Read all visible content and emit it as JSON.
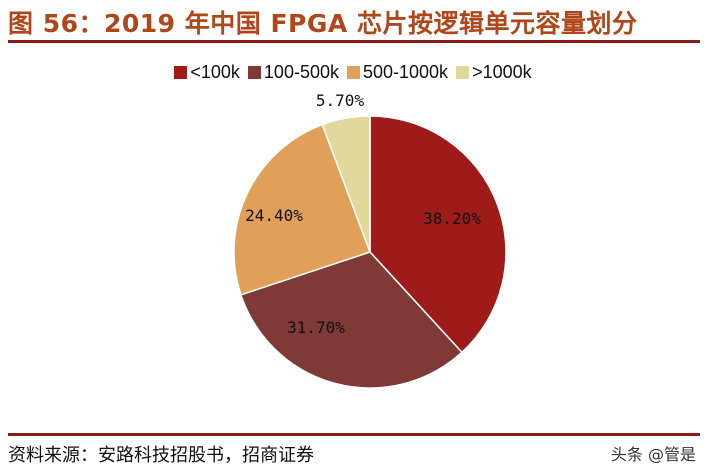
{
  "title": "图 56：2019 年中国 FPGA 芯片按逻辑单元容量划分",
  "source": "资料来源：安路科技招股书，招商证券",
  "watermark": "头条 @管是",
  "chart_data": {
    "type": "pie",
    "title": "图 56：2019 年中国 FPGA 芯片按逻辑单元容量划分",
    "legend_position": "top",
    "start_angle": "12 o'clock, clockwise",
    "categories": [
      "<100k",
      "100-500k",
      "500-1000k",
      ">1000k"
    ],
    "values": [
      38.2,
      31.7,
      24.4,
      5.7
    ],
    "labels": [
      "38.20%",
      "31.70%",
      "24.40%",
      "5.70%"
    ],
    "colors": [
      "#9E1B1A",
      "#7F3A38",
      "#E0A05A",
      "#E2D89C"
    ]
  }
}
